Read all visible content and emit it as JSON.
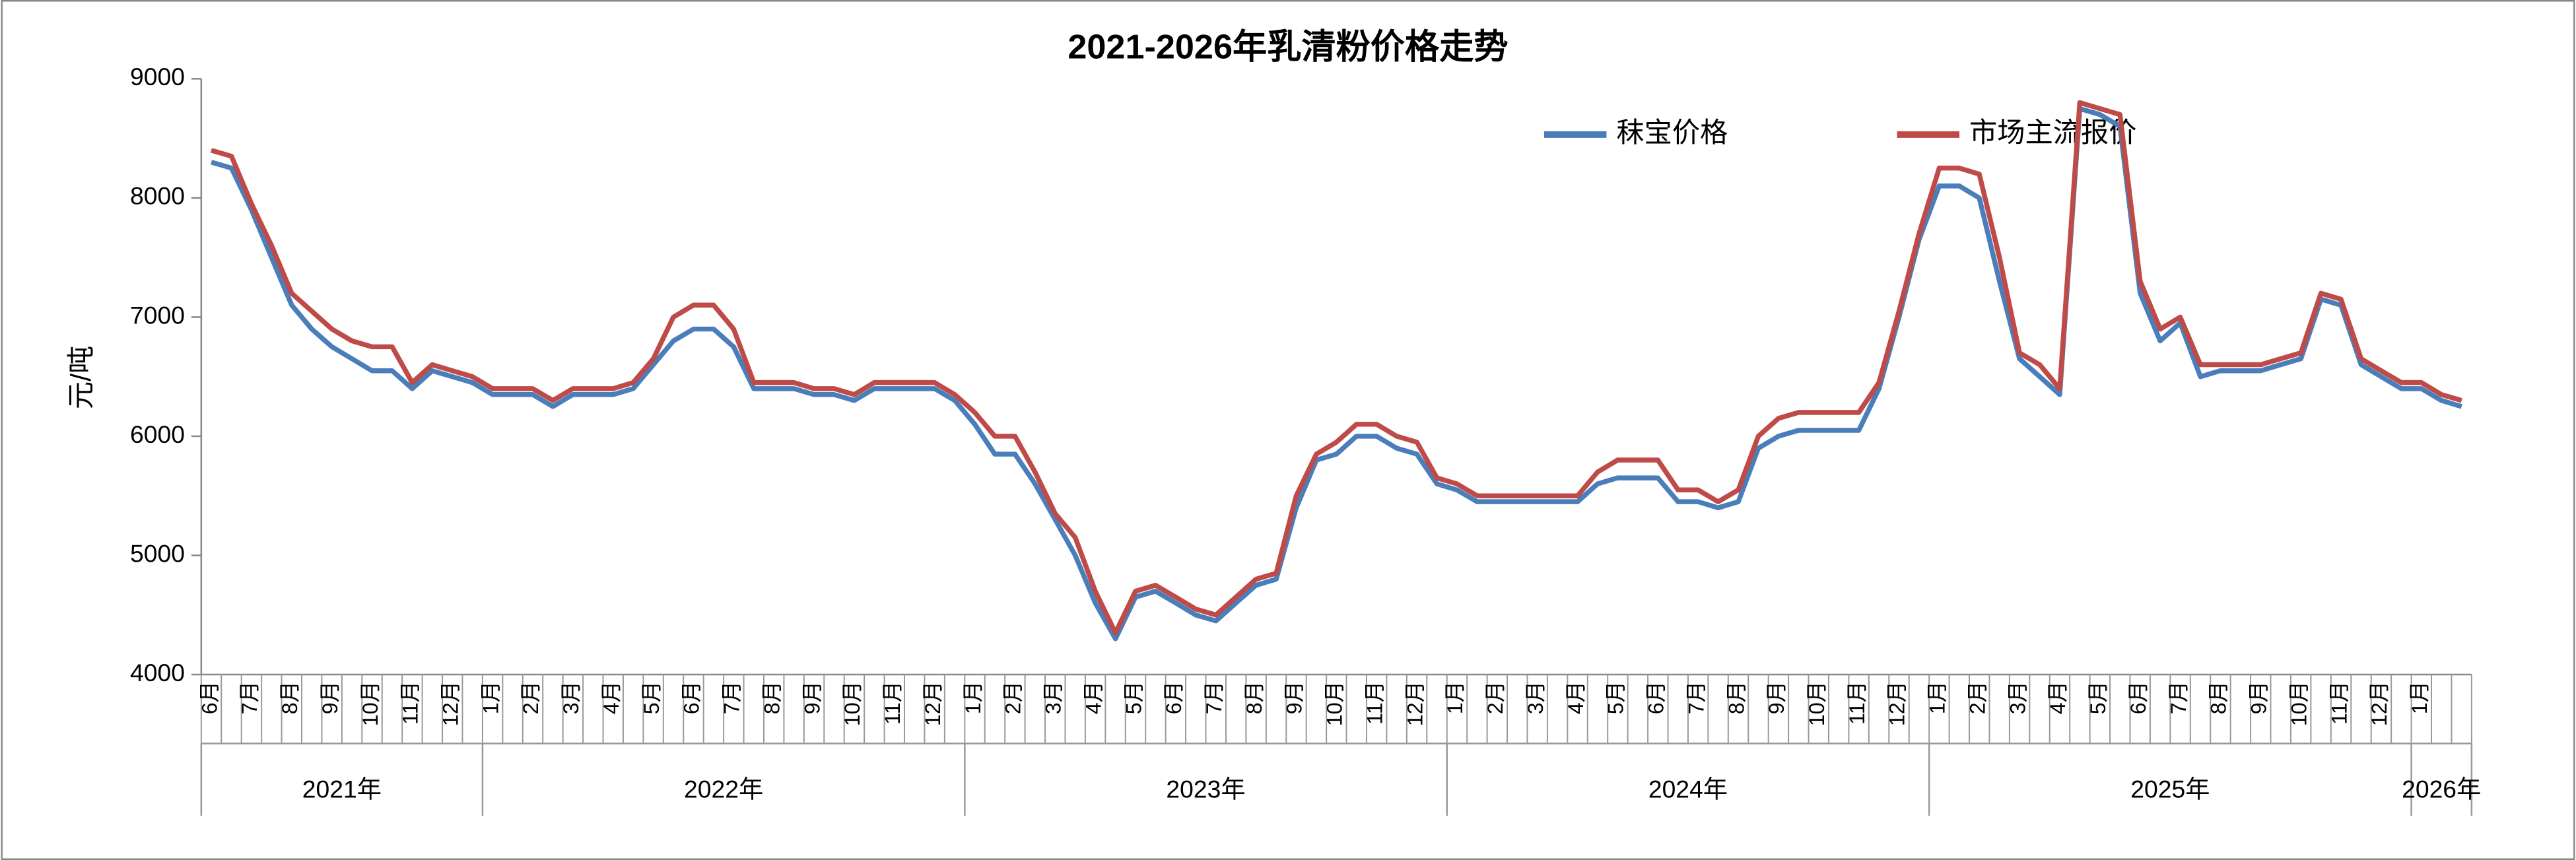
{
  "chart_data": {
    "type": "line",
    "title": "2021-2026年乳清粉价格走势",
    "y_label": "元/吨",
    "categories": [
      "6月",
      null,
      "7月",
      null,
      "8月",
      null,
      "9月",
      null,
      "10月",
      null,
      "11月",
      null,
      "12月",
      null,
      "1月",
      null,
      "2月",
      null,
      "3月",
      null,
      "4月",
      null,
      "5月",
      null,
      "6月",
      null,
      "7月",
      null,
      "8月",
      null,
      "9月",
      null,
      "10月",
      null,
      "11月",
      null,
      "12月",
      null,
      "1月",
      null,
      "2月",
      null,
      "3月",
      null,
      "4月",
      null,
      "5月",
      null,
      "6月",
      null,
      "7月",
      null,
      "8月",
      null,
      "9月",
      null,
      "10月",
      null,
      "11月",
      null,
      "12月",
      null,
      "1月",
      null,
      "2月",
      null,
      "3月",
      null,
      "4月",
      null,
      "5月",
      null,
      "6月",
      null,
      "7月",
      null,
      "8月",
      null,
      "9月",
      null,
      "10月",
      null,
      "11月",
      null,
      "12月",
      null,
      "1月",
      null,
      "2月",
      null,
      "3月",
      null,
      "4月",
      null,
      "5月",
      null,
      "6月",
      null,
      "7月",
      null,
      "8月",
      null,
      "9月",
      null,
      "10月",
      null,
      "11月",
      null,
      "12月",
      null,
      "1月",
      null,
      null
    ],
    "year_groups": [
      {
        "label": "2021年",
        "start": 0,
        "end": 13
      },
      {
        "label": "2022年",
        "start": 14,
        "end": 37
      },
      {
        "label": "2023年",
        "start": 38,
        "end": 61
      },
      {
        "label": "2024年",
        "start": 62,
        "end": 85
      },
      {
        "label": "2025年",
        "start": 86,
        "end": 109
      },
      {
        "label": "2026年",
        "start": 110,
        "end": 112
      }
    ],
    "series": [
      {
        "name": "秣宝价格",
        "color": "#4a7ebb",
        "values": [
          8300,
          8250,
          7900,
          7500,
          7100,
          6900,
          6750,
          6650,
          6550,
          6550,
          6400,
          6550,
          6500,
          6450,
          6350,
          6350,
          6350,
          6250,
          6350,
          6350,
          6350,
          6400,
          6600,
          6800,
          6900,
          6900,
          6750,
          6400,
          6400,
          6400,
          6350,
          6350,
          6300,
          6400,
          6400,
          6400,
          6400,
          6300,
          6100,
          5850,
          5850,
          5600,
          5300,
          5000,
          4600,
          4300,
          4650,
          4700,
          4600,
          4500,
          4450,
          4600,
          4750,
          4800,
          5400,
          5800,
          5850,
          6000,
          6000,
          5900,
          5850,
          5600,
          5550,
          5450,
          5450,
          5450,
          5450,
          5450,
          5450,
          5600,
          5650,
          5650,
          5650,
          5450,
          5450,
          5400,
          5450,
          5900,
          6000,
          6050,
          6050,
          6050,
          6050,
          6400,
          7000,
          7650,
          8100,
          8100,
          8000,
          7300,
          6650,
          6500,
          6350,
          8750,
          8700,
          8600,
          7200,
          6800,
          6950,
          6500,
          6550,
          6550,
          6550,
          6600,
          6650,
          7150,
          7100,
          6600,
          6500,
          6400,
          6400,
          6300,
          6250
        ]
      },
      {
        "name": "市场主流报价",
        "color": "#be4b48",
        "values": [
          8400,
          8350,
          7950,
          7600,
          7200,
          7050,
          6900,
          6800,
          6750,
          6750,
          6450,
          6600,
          6550,
          6500,
          6400,
          6400,
          6400,
          6300,
          6400,
          6400,
          6400,
          6450,
          6650,
          7000,
          7100,
          7100,
          6900,
          6450,
          6450,
          6450,
          6400,
          6400,
          6350,
          6450,
          6450,
          6450,
          6450,
          6350,
          6200,
          6000,
          6000,
          5700,
          5350,
          5150,
          4700,
          4350,
          4700,
          4750,
          4650,
          4550,
          4500,
          4650,
          4800,
          4850,
          5500,
          5850,
          5950,
          6100,
          6100,
          6000,
          5950,
          5650,
          5600,
          5500,
          5500,
          5500,
          5500,
          5500,
          5500,
          5700,
          5800,
          5800,
          5800,
          5550,
          5550,
          5450,
          5550,
          6000,
          6150,
          6200,
          6200,
          6200,
          6200,
          6450,
          7050,
          7700,
          8250,
          8250,
          8200,
          7500,
          6700,
          6600,
          6400,
          8800,
          8750,
          8700,
          7300,
          6900,
          7000,
          6600,
          6600,
          6600,
          6600,
          6650,
          6700,
          7200,
          7150,
          6650,
          6550,
          6450,
          6450,
          6350,
          6300
        ]
      }
    ],
    "ylim": [
      4000,
      9000
    ],
    "yticks": [
      4000,
      5000,
      6000,
      7000,
      8000,
      9000
    ],
    "grid": false,
    "legend": "top"
  }
}
